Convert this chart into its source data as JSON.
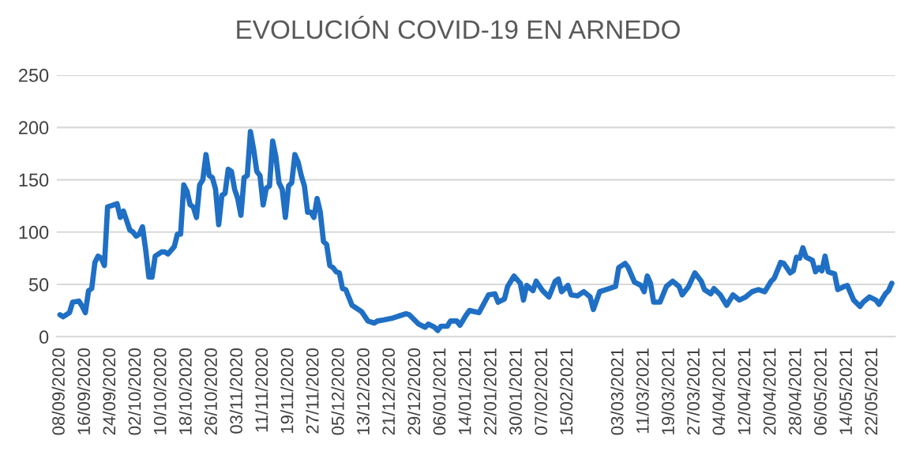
{
  "chart_data": {
    "type": "line",
    "title": "EVOLUCIÓN COVID-19 EN ARNEDO",
    "x": [
      "2020-09-08",
      "2020-09-09",
      "2020-09-11",
      "2020-09-12",
      "2020-09-14",
      "2020-09-15",
      "2020-09-16",
      "2020-09-17",
      "2020-09-18",
      "2020-09-19",
      "2020-09-20",
      "2020-09-21",
      "2020-09-22",
      "2020-09-23",
      "2020-09-24",
      "2020-09-26",
      "2020-09-27",
      "2020-09-28",
      "2020-09-30",
      "2020-10-01",
      "2020-10-02",
      "2020-10-03",
      "2020-10-04",
      "2020-10-05",
      "2020-10-06",
      "2020-10-07",
      "2020-10-08",
      "2020-10-10",
      "2020-10-11",
      "2020-10-12",
      "2020-10-14",
      "2020-10-15",
      "2020-10-16",
      "2020-10-17",
      "2020-10-18",
      "2020-10-19",
      "2020-10-20",
      "2020-10-21",
      "2020-10-22",
      "2020-10-23",
      "2020-10-24",
      "2020-10-25",
      "2020-10-26",
      "2020-10-27",
      "2020-10-28",
      "2020-10-29",
      "2020-10-30",
      "2020-10-31",
      "2020-11-01",
      "2020-11-02",
      "2020-11-03",
      "2020-11-04",
      "2020-11-05",
      "2020-11-06",
      "2020-11-07",
      "2020-11-08",
      "2020-11-09",
      "2020-11-10",
      "2020-11-11",
      "2020-11-12",
      "2020-11-13",
      "2020-11-14",
      "2020-11-15",
      "2020-11-16",
      "2020-11-17",
      "2020-11-18",
      "2020-11-19",
      "2020-11-20",
      "2020-11-21",
      "2020-11-22",
      "2020-11-23",
      "2020-11-24",
      "2020-11-25",
      "2020-11-26",
      "2020-11-27",
      "2020-11-28",
      "2020-11-29",
      "2020-11-30",
      "2020-12-01",
      "2020-12-02",
      "2020-12-03",
      "2020-12-04",
      "2020-12-05",
      "2020-12-06",
      "2020-12-07",
      "2020-12-09",
      "2020-12-10",
      "2020-12-12",
      "2020-12-14",
      "2020-12-16",
      "2020-12-17",
      "2020-12-19",
      "2020-12-22",
      "2020-12-24",
      "2020-12-26",
      "2020-12-27",
      "2020-12-29",
      "2020-12-30",
      "2021-01-01",
      "2021-01-02",
      "2021-01-04",
      "2021-01-05",
      "2021-01-06",
      "2021-01-08",
      "2021-01-09",
      "2021-01-11",
      "2021-01-12",
      "2021-01-14",
      "2021-01-15",
      "2021-01-18",
      "2021-01-21",
      "2021-01-23",
      "2021-01-24",
      "2021-01-26",
      "2021-01-27",
      "2021-01-29",
      "2021-01-31",
      "2021-02-01",
      "2021-02-02",
      "2021-02-04",
      "2021-02-05",
      "2021-02-07",
      "2021-02-09",
      "2021-02-11",
      "2021-02-12",
      "2021-02-13",
      "2021-02-15",
      "2021-02-16",
      "2021-02-18",
      "2021-02-20",
      "2021-02-22",
      "2021-02-23",
      "2021-02-25",
      "2021-02-27",
      "2021-03-02",
      "2021-03-03",
      "2021-03-05",
      "2021-03-06",
      "2021-03-08",
      "2021-03-10",
      "2021-03-11",
      "2021-03-12",
      "2021-03-13",
      "2021-03-14",
      "2021-03-16",
      "2021-03-18",
      "2021-03-20",
      "2021-03-22",
      "2021-03-23",
      "2021-03-25",
      "2021-03-27",
      "2021-03-29",
      "2021-03-30",
      "2021-04-01",
      "2021-04-02",
      "2021-04-04",
      "2021-04-06",
      "2021-04-08",
      "2021-04-10",
      "2021-04-12",
      "2021-04-14",
      "2021-04-16",
      "2021-04-18",
      "2021-04-20",
      "2021-04-21",
      "2021-04-23",
      "2021-04-24",
      "2021-04-26",
      "2021-04-27",
      "2021-04-28",
      "2021-04-29",
      "2021-04-30",
      "2021-05-01",
      "2021-05-03",
      "2021-05-04",
      "2021-05-05",
      "2021-05-06",
      "2021-05-07",
      "2021-05-08",
      "2021-05-10",
      "2021-05-11",
      "2021-05-13",
      "2021-05-14",
      "2021-05-16",
      "2021-05-18",
      "2021-05-19",
      "2021-05-21",
      "2021-05-23",
      "2021-05-24",
      "2021-05-26",
      "2021-05-27",
      "2021-05-28"
    ],
    "series": [
      {
        "color": "#1f6fc5",
        "values": [
          21,
          19,
          23,
          33,
          34,
          29,
          23,
          44,
          46,
          71,
          77,
          75,
          68,
          124,
          125,
          127,
          114,
          120,
          102,
          100,
          96,
          98,
          105,
          83,
          57,
          57,
          77,
          81,
          81,
          79,
          86,
          98,
          98,
          145,
          139,
          126,
          124,
          114,
          145,
          150,
          174,
          154,
          152,
          141,
          107,
          135,
          137,
          160,
          158,
          141,
          132,
          116,
          152,
          154,
          196,
          179,
          158,
          154,
          126,
          142,
          144,
          187,
          172,
          147,
          141,
          114,
          144,
          147,
          174,
          167,
          154,
          144,
          119,
          119,
          114,
          132,
          119,
          91,
          88,
          68,
          66,
          62,
          61,
          46,
          45,
          30,
          28,
          24,
          15,
          13,
          15,
          16,
          18,
          20,
          22,
          21,
          15,
          12,
          9,
          12,
          9,
          6,
          10,
          10,
          15,
          15,
          11,
          21,
          25,
          23,
          40,
          41,
          33,
          36,
          48,
          58,
          51,
          35,
          49,
          44,
          53,
          44,
          38,
          53,
          55,
          43,
          49,
          40,
          39,
          43,
          38,
          26,
          43,
          45,
          48,
          66,
          70,
          66,
          52,
          49,
          43,
          58,
          51,
          33,
          33,
          48,
          53,
          48,
          40,
          48,
          61,
          53,
          45,
          41,
          46,
          40,
          30,
          40,
          35,
          38,
          43,
          45,
          43,
          53,
          56,
          71,
          70,
          61,
          63,
          76,
          75,
          85,
          76,
          73,
          62,
          66,
          63,
          77,
          62,
          60,
          45,
          48,
          49,
          35,
          29,
          33,
          38,
          35,
          31,
          41,
          44,
          51
        ]
      }
    ],
    "xlim": [
      "2020-09-07",
      "2021-05-29"
    ],
    "xticks": [
      {
        "value": "2020-09-08",
        "label": "08/09/2020"
      },
      {
        "value": "2020-09-16",
        "label": "16/09/2020"
      },
      {
        "value": "2020-09-24",
        "label": "24/09/2020"
      },
      {
        "value": "2020-10-02",
        "label": "02/10/2020"
      },
      {
        "value": "2020-10-10",
        "label": "10/10/2020"
      },
      {
        "value": "2020-10-18",
        "label": "18/10/2020"
      },
      {
        "value": "2020-10-26",
        "label": "26/10/2020"
      },
      {
        "value": "2020-11-03",
        "label": "03/11/2020"
      },
      {
        "value": "2020-11-11",
        "label": "11/11/2020"
      },
      {
        "value": "2020-11-19",
        "label": "19/11/2020"
      },
      {
        "value": "2020-11-27",
        "label": "27/11/2020"
      },
      {
        "value": "2020-12-05",
        "label": "05/12/2020"
      },
      {
        "value": "2020-12-13",
        "label": "13/12/2020"
      },
      {
        "value": "2020-12-21",
        "label": "21/12/2020"
      },
      {
        "value": "2020-12-29",
        "label": "29/12/2020"
      },
      {
        "value": "2021-01-06",
        "label": "06/01/2021"
      },
      {
        "value": "2021-01-14",
        "label": "14/01/2021"
      },
      {
        "value": "2021-01-22",
        "label": "22/01/2021"
      },
      {
        "value": "2021-01-30",
        "label": "30/01/2021"
      },
      {
        "value": "2021-02-07",
        "label": "07/02/2021"
      },
      {
        "value": "2021-02-15",
        "label": "15/02/2021"
      },
      {
        "value": "2021-03-03",
        "label": "03/03/2021"
      },
      {
        "value": "2021-03-11",
        "label": "11/03/2021"
      },
      {
        "value": "2021-03-19",
        "label": "19/03/2021"
      },
      {
        "value": "2021-03-27",
        "label": "27/03/2021"
      },
      {
        "value": "2021-04-04",
        "label": "04/04/2021"
      },
      {
        "value": "2021-04-12",
        "label": "12/04/2021"
      },
      {
        "value": "2021-04-20",
        "label": "20/04/2021"
      },
      {
        "value": "2021-04-28",
        "label": "28/04/2021"
      },
      {
        "value": "2021-05-06",
        "label": "06/05/2021"
      },
      {
        "value": "2021-05-14",
        "label": "14/05/2021"
      },
      {
        "value": "2021-05-22",
        "label": "22/05/2021"
      }
    ],
    "ylim": [
      0,
      250
    ],
    "yticks": [
      0,
      50,
      100,
      150,
      200,
      250
    ],
    "grid": "y",
    "legend": false,
    "marker": "none",
    "line_style": "solid"
  }
}
